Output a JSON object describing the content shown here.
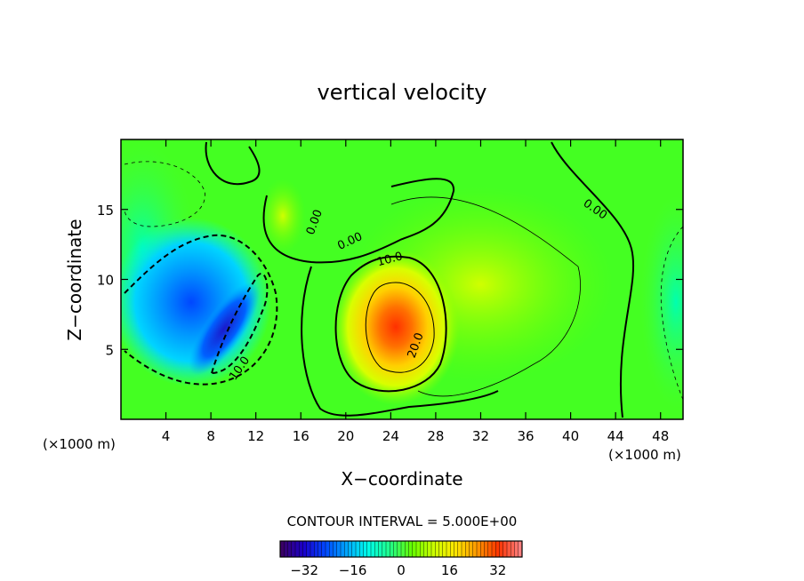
{
  "chart_data": {
    "type": "heatmap",
    "title": "vertical velocity",
    "xlabel": "X−coordinate",
    "ylabel": "Z−coordinate",
    "x_unit": "(×1000 m)",
    "y_unit": "(×1000 m)",
    "xlim": [
      0,
      50
    ],
    "ylim": [
      0,
      20
    ],
    "x_ticks": [
      4,
      8,
      12,
      16,
      20,
      24,
      28,
      32,
      36,
      40,
      44,
      48
    ],
    "y_ticks": [
      5,
      10,
      15
    ],
    "contour_interval_text": "CONTOUR INTERVAL = 5.000E+00",
    "colorbar": {
      "range": [
        -40,
        40
      ],
      "ticks": [
        -32,
        -16,
        0,
        16,
        32
      ],
      "colors": [
        "#3a0066",
        "#1a00cc",
        "#0047ff",
        "#00a8ff",
        "#00ffe8",
        "#22ff88",
        "#66ff00",
        "#ccff00",
        "#ffe800",
        "#ff9900",
        "#ff3300",
        "#ff8080"
      ]
    },
    "field_features": [
      {
        "type": "downdraft",
        "x": 8.5,
        "z": 6.0,
        "value": -20
      },
      {
        "type": "downdraft",
        "x": 6.5,
        "z": 8.0,
        "value": -12
      },
      {
        "type": "updraft",
        "x": 24.5,
        "z": 6.5,
        "value": 27
      },
      {
        "type": "updraft",
        "x": 14.5,
        "z": 14.5,
        "value": 5
      }
    ],
    "contour_labels": [
      {
        "text": "0.00",
        "x": 17.5,
        "z": 14.0,
        "rotate": -70
      },
      {
        "text": "0.00",
        "x": 20.5,
        "z": 12.5,
        "rotate": -25
      },
      {
        "text": "10.0",
        "x": 24.0,
        "z": 11.2,
        "rotate": -15
      },
      {
        "text": "20.0",
        "x": 26.5,
        "z": 5.2,
        "rotate": -70
      },
      {
        "text": "0.00",
        "x": 42.0,
        "z": 14.8,
        "rotate": 35
      },
      {
        "text": "10.0",
        "x": 10.8,
        "z": 3.5,
        "rotate": -55
      }
    ]
  }
}
